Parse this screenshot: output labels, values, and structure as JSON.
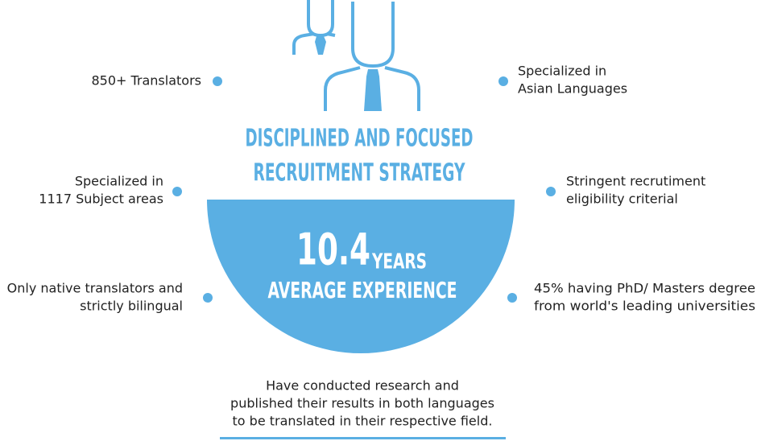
{
  "title": {
    "lines": [
      "DISCIPLINED AND FOCUSED",
      "RECRUITMENT STRATEGY"
    ]
  },
  "highlight": {
    "number": "10.4",
    "unit": "YEARS",
    "label": "AVERAGE EXPERIENCE"
  },
  "left_points": [
    {
      "lines": [
        "850+ Translators"
      ]
    },
    {
      "lines": [
        "Specialized in",
        "1117 Subject areas"
      ]
    },
    {
      "lines": [
        "Only native translators and",
        "strictly bilingual"
      ]
    }
  ],
  "right_points": [
    {
      "lines": [
        "Specialized in",
        "Asian Languages"
      ]
    },
    {
      "lines": [
        "Stringent recrutiment",
        "eligibility criterial"
      ]
    },
    {
      "lines": [
        "45% having PhD/ Masters degree",
        "from world's leading universities"
      ]
    }
  ],
  "footer": {
    "lines": [
      "Have conducted research and",
      "published their results in both languages",
      "to be translated in their respective field."
    ]
  }
}
